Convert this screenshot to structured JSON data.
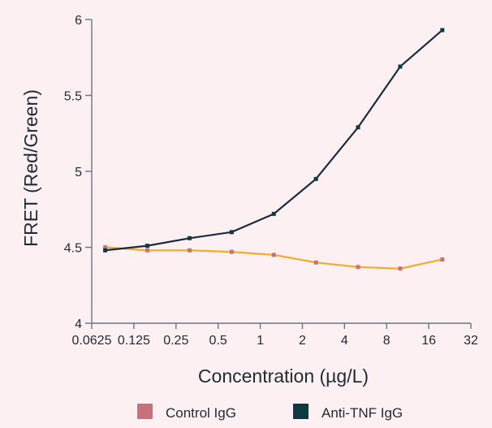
{
  "chart_data": {
    "type": "line",
    "title": "",
    "xlabel": "Concentration (µg/L)",
    "ylabel": "FRET (Red/Green)",
    "xscale": "log2",
    "xlim": [
      0.0625,
      32
    ],
    "ylim": [
      4,
      6
    ],
    "x_ticks": [
      0.0625,
      0.125,
      0.25,
      0.5,
      1,
      2,
      4,
      8,
      16,
      32
    ],
    "x_tick_labels": [
      "0.0625",
      "0.125",
      "0.25",
      "0.5",
      "1",
      "2",
      "4",
      "8",
      "16",
      "32"
    ],
    "y_ticks": [
      4,
      4.5,
      5,
      5.5,
      6
    ],
    "y_tick_labels": [
      "4",
      "4.5",
      "5",
      "5.5",
      "6"
    ],
    "grid": false,
    "legend_position": "bottom",
    "series": [
      {
        "name": "Control IgG",
        "color": "#c7727a",
        "line_color": "#f3ab2a",
        "x": [
          0.078,
          0.156,
          0.3125,
          0.625,
          1.25,
          2.5,
          5,
          10,
          20
        ],
        "y": [
          4.5,
          4.48,
          4.48,
          4.47,
          4.45,
          4.4,
          4.37,
          4.36,
          4.42
        ]
      },
      {
        "name": "Anti-TNF IgG",
        "color": "#0f3940",
        "line_color": "#1a2b3c",
        "x": [
          0.078,
          0.156,
          0.3125,
          0.625,
          1.25,
          2.5,
          5,
          10,
          20
        ],
        "y": [
          4.48,
          4.51,
          4.56,
          4.6,
          4.72,
          4.95,
          5.29,
          5.69,
          5.93
        ]
      }
    ]
  }
}
